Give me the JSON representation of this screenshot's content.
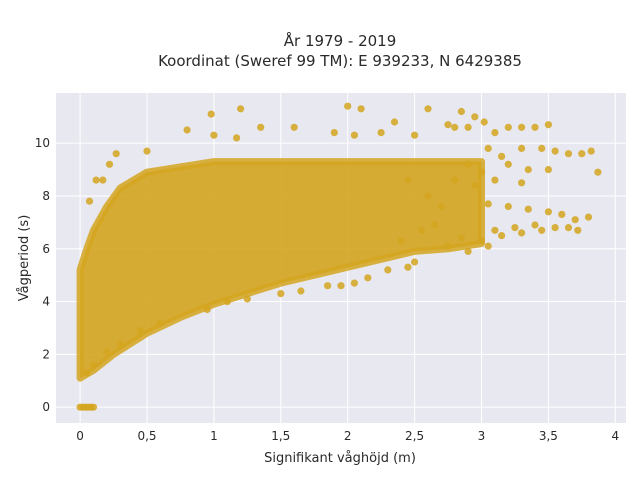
{
  "chart_data": {
    "type": "scatter",
    "title_lines": [
      "År 1979 - 2019",
      "Koordinat (Sweref 99 TM): E 939233, N 6429385"
    ],
    "xlabel": "Signifikant våghöjd (m)",
    "ylabel": "Vågperiod (s)",
    "xlim": [
      -0.18,
      4.08
    ],
    "ylim": [
      -0.6,
      11.9
    ],
    "x_ticks": [
      {
        "value": 0,
        "label": "0"
      },
      {
        "value": 0.5,
        "label": "0,5"
      },
      {
        "value": 1,
        "label": "1"
      },
      {
        "value": 1.5,
        "label": "1,5"
      },
      {
        "value": 2,
        "label": "2"
      },
      {
        "value": 2.5,
        "label": "2,5"
      },
      {
        "value": 3,
        "label": "3"
      },
      {
        "value": 3.5,
        "label": "3,5"
      },
      {
        "value": 4,
        "label": "4"
      }
    ],
    "y_ticks": [
      {
        "value": 0,
        "label": "0"
      },
      {
        "value": 2,
        "label": "2"
      },
      {
        "value": 4,
        "label": "4"
      },
      {
        "value": 6,
        "label": "6"
      },
      {
        "value": 8,
        "label": "8"
      },
      {
        "value": 10,
        "label": "10"
      }
    ],
    "grid": true,
    "background_color": "#e8e8f0",
    "marker_color": "#d4a41f",
    "series": [
      {
        "envelope": {
          "lower": [
            [
              0.0,
              1.1
            ],
            [
              0.1,
              1.4
            ],
            [
              0.25,
              2.0
            ],
            [
              0.5,
              2.8
            ],
            [
              0.75,
              3.4
            ],
            [
              1.0,
              3.9
            ],
            [
              1.25,
              4.3
            ],
            [
              1.5,
              4.7
            ],
            [
              1.75,
              5.0
            ],
            [
              2.0,
              5.3
            ],
            [
              2.25,
              5.6
            ],
            [
              2.5,
              5.9
            ],
            [
              2.75,
              6.0
            ],
            [
              3.0,
              6.2
            ]
          ],
          "upper": [
            [
              0.0,
              5.2
            ],
            [
              0.05,
              6.0
            ],
            [
              0.1,
              6.7
            ],
            [
              0.2,
              7.6
            ],
            [
              0.3,
              8.3
            ],
            [
              0.5,
              8.9
            ],
            [
              1.0,
              9.3
            ],
            [
              1.5,
              9.3
            ],
            [
              2.0,
              9.3
            ],
            [
              2.5,
              9.3
            ],
            [
              3.0,
              9.3
            ]
          ]
        },
        "points": [
          [
            0.0,
            0.0
          ],
          [
            0.02,
            0.0
          ],
          [
            0.04,
            0.0
          ],
          [
            0.06,
            0.0
          ],
          [
            0.08,
            0.0
          ],
          [
            0.1,
            0.0
          ],
          [
            0.07,
            7.8
          ],
          [
            0.12,
            8.6
          ],
          [
            0.17,
            8.6
          ],
          [
            0.22,
            9.2
          ],
          [
            0.27,
            9.6
          ],
          [
            0.5,
            9.7
          ],
          [
            0.8,
            10.5
          ],
          [
            0.98,
            11.1
          ],
          [
            1.0,
            10.3
          ],
          [
            1.17,
            10.2
          ],
          [
            1.2,
            11.3
          ],
          [
            1.35,
            10.6
          ],
          [
            1.6,
            10.6
          ],
          [
            1.9,
            10.4
          ],
          [
            2.0,
            11.4
          ],
          [
            2.05,
            10.3
          ],
          [
            2.1,
            11.3
          ],
          [
            2.25,
            10.4
          ],
          [
            2.35,
            10.8
          ],
          [
            2.5,
            10.3
          ],
          [
            2.6,
            11.3
          ],
          [
            2.75,
            10.7
          ],
          [
            2.8,
            10.6
          ],
          [
            2.85,
            11.2
          ],
          [
            2.9,
            10.6
          ],
          [
            2.95,
            11.0
          ],
          [
            3.02,
            10.8
          ],
          [
            3.1,
            10.4
          ],
          [
            3.2,
            10.6
          ],
          [
            3.3,
            10.6
          ],
          [
            3.4,
            10.6
          ],
          [
            3.5,
            10.7
          ],
          [
            3.05,
            9.8
          ],
          [
            3.15,
            9.5
          ],
          [
            3.3,
            9.8
          ],
          [
            3.45,
            9.8
          ],
          [
            3.55,
            9.7
          ],
          [
            3.65,
            9.6
          ],
          [
            3.75,
            9.6
          ],
          [
            3.82,
            9.7
          ],
          [
            3.87,
            8.9
          ],
          [
            3.2,
            9.2
          ],
          [
            3.35,
            9.0
          ],
          [
            3.5,
            9.0
          ],
          [
            3.1,
            8.6
          ],
          [
            3.3,
            8.5
          ],
          [
            3.05,
            7.7
          ],
          [
            3.2,
            7.6
          ],
          [
            3.35,
            7.5
          ],
          [
            3.5,
            7.4
          ],
          [
            3.6,
            7.3
          ],
          [
            3.7,
            7.1
          ],
          [
            3.8,
            7.2
          ],
          [
            3.1,
            6.7
          ],
          [
            3.25,
            6.8
          ],
          [
            3.4,
            6.9
          ],
          [
            3.55,
            6.8
          ],
          [
            3.65,
            6.8
          ],
          [
            3.72,
            6.7
          ],
          [
            3.0,
            6.3
          ],
          [
            3.05,
            6.1
          ],
          [
            3.15,
            6.5
          ],
          [
            3.3,
            6.6
          ],
          [
            3.45,
            6.7
          ],
          [
            2.9,
            5.9
          ],
          [
            2.45,
            5.3
          ],
          [
            2.5,
            5.5
          ],
          [
            2.3,
            5.2
          ],
          [
            2.15,
            4.9
          ],
          [
            2.05,
            4.7
          ],
          [
            1.95,
            4.6
          ],
          [
            1.85,
            4.6
          ],
          [
            1.65,
            4.4
          ],
          [
            1.5,
            4.3
          ],
          [
            1.25,
            4.1
          ],
          [
            1.1,
            4.0
          ],
          [
            0.95,
            3.7
          ],
          [
            0.6,
            3.2
          ],
          [
            0.45,
            2.9
          ],
          [
            0.3,
            2.4
          ],
          [
            0.2,
            2.1
          ],
          [
            0.1,
            1.6
          ],
          [
            0.05,
            1.3
          ],
          [
            2.4,
            6.3
          ],
          [
            2.55,
            6.7
          ],
          [
            2.65,
            6.9
          ],
          [
            2.75,
            6.1
          ],
          [
            2.85,
            6.4
          ],
          [
            2.7,
            7.6
          ],
          [
            2.6,
            8.0
          ],
          [
            2.45,
            8.6
          ],
          [
            2.8,
            8.6
          ],
          [
            2.95,
            8.4
          ],
          [
            3.0,
            8.9
          ],
          [
            2.9,
            9.2
          ]
        ]
      }
    ]
  }
}
